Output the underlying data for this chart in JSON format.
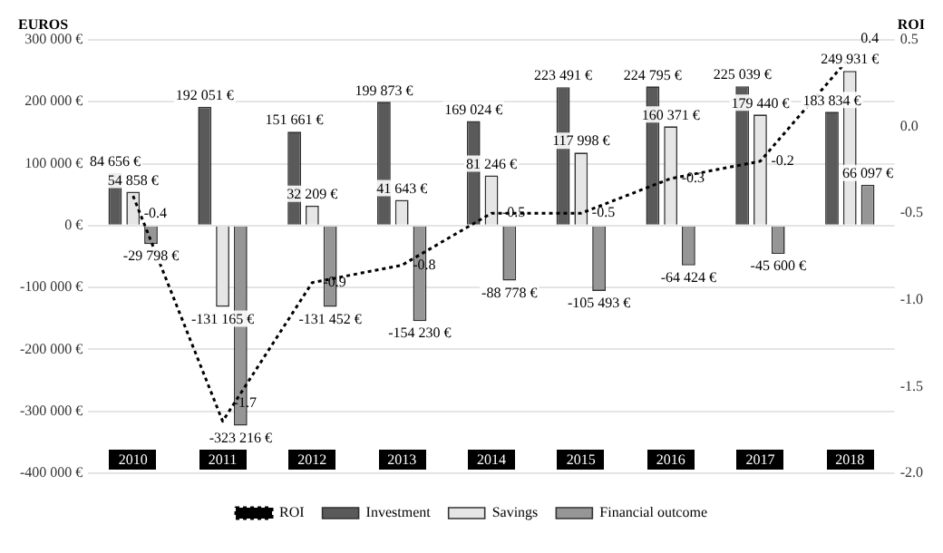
{
  "chart_data": {
    "type": "bar",
    "ylabel": "EUROS",
    "y2label": "ROI",
    "categories": [
      "2010",
      "2011",
      "2012",
      "2013",
      "2014",
      "2015",
      "2016",
      "2017",
      "2018"
    ],
    "series": [
      {
        "name": "Investment",
        "color": "#5a5a5a",
        "values": [
          84656,
          192051,
          151661,
          199873,
          169024,
          223491,
          224795,
          225039,
          183834
        ],
        "value_labels": [
          "84 656 €",
          "192 051 €",
          "151 661 €",
          "199 873 €",
          "169 024 €",
          "223 491 €",
          "224 795 €",
          "225 039 €",
          "183 834 €"
        ]
      },
      {
        "name": "Savings",
        "color": "#e6e6e6",
        "values": [
          54858,
          -131165,
          32209,
          41643,
          81246,
          117998,
          160371,
          179440,
          249931
        ],
        "value_labels": [
          "54 858 €",
          "-131 165 €",
          "32 209 €",
          "41 643 €",
          "81 246 €",
          "117 998 €",
          "160 371 €",
          "179 440 €",
          "249 931 €"
        ]
      },
      {
        "name": "Financial outcome",
        "color": "#969696",
        "values": [
          -29798,
          -323216,
          -131452,
          -154230,
          -88778,
          -105493,
          -64424,
          -45600,
          66097
        ],
        "value_labels": [
          "-29 798 €",
          "-323 216 €",
          "-131 452 €",
          "-154 230 €",
          "-88 778 €",
          "-105 493 €",
          "-64 424 €",
          "-45 600 €",
          "66 097 €"
        ]
      },
      {
        "name": "ROI",
        "type": "line",
        "axis": "y2",
        "color": "#000000",
        "line_style": "dotted",
        "marker": "none",
        "values": [
          -0.4,
          -1.7,
          -0.9,
          -0.8,
          -0.5,
          -0.5,
          -0.3,
          -0.2,
          0.4
        ],
        "value_labels": [
          "-0.4",
          "-1.7",
          "-0.9",
          "-0.8",
          "-0.5",
          "-0.5",
          "-0.3",
          "-0.2",
          "0.4"
        ]
      }
    ],
    "ylim": [
      -400000,
      300000
    ],
    "yticks": [
      {
        "value": -400000,
        "label": "-400 000 €"
      },
      {
        "value": -300000,
        "label": "-300 000 €"
      },
      {
        "value": -200000,
        "label": "-200 000 €"
      },
      {
        "value": -100000,
        "label": "-100 000 €"
      },
      {
        "value": 0,
        "label": "0 €"
      },
      {
        "value": 100000,
        "label": "100 000 €"
      },
      {
        "value": 200000,
        "label": "200 000 €"
      },
      {
        "value": 300000,
        "label": "300 000 €"
      }
    ],
    "y2lim": [
      -2,
      0.5
    ],
    "y2ticks": [
      {
        "value": -2,
        "label": "-2.0"
      },
      {
        "value": -1.5,
        "label": "-1.5"
      },
      {
        "value": -1,
        "label": "-1.0"
      },
      {
        "value": -0.5,
        "label": "-0.5"
      },
      {
        "value": 0,
        "label": "0.0"
      },
      {
        "value": 0.5,
        "label": "0.5"
      }
    ],
    "grid": "y",
    "legend": "bottom"
  }
}
